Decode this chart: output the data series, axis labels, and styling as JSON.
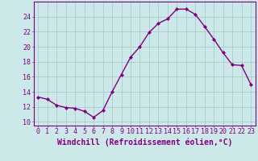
{
  "x": [
    0,
    1,
    2,
    3,
    4,
    5,
    6,
    7,
    8,
    9,
    10,
    11,
    12,
    13,
    14,
    15,
    16,
    17,
    18,
    19,
    20,
    21,
    22,
    23
  ],
  "y": [
    13.3,
    13.0,
    12.2,
    11.9,
    11.8,
    11.4,
    10.6,
    11.5,
    14.0,
    16.3,
    18.6,
    20.0,
    21.9,
    23.1,
    23.7,
    25.0,
    25.0,
    24.3,
    22.7,
    21.0,
    19.2,
    17.6,
    17.5,
    15.0
  ],
  "line_color": "#800080",
  "marker": "D",
  "marker_size": 2.0,
  "bg_color": "#cce8e8",
  "grid_color": "#aacccc",
  "xlabel": "Windchill (Refroidissement éolien,°C)",
  "xlim": [
    -0.5,
    23.5
  ],
  "ylim": [
    9.5,
    26.0
  ],
  "yticks": [
    10,
    12,
    14,
    16,
    18,
    20,
    22,
    24
  ],
  "xticks": [
    0,
    1,
    2,
    3,
    4,
    5,
    6,
    7,
    8,
    9,
    10,
    11,
    12,
    13,
    14,
    15,
    16,
    17,
    18,
    19,
    20,
    21,
    22,
    23
  ],
  "tick_label_fontsize": 6.0,
  "xlabel_fontsize": 7.0,
  "line_width": 1.0
}
